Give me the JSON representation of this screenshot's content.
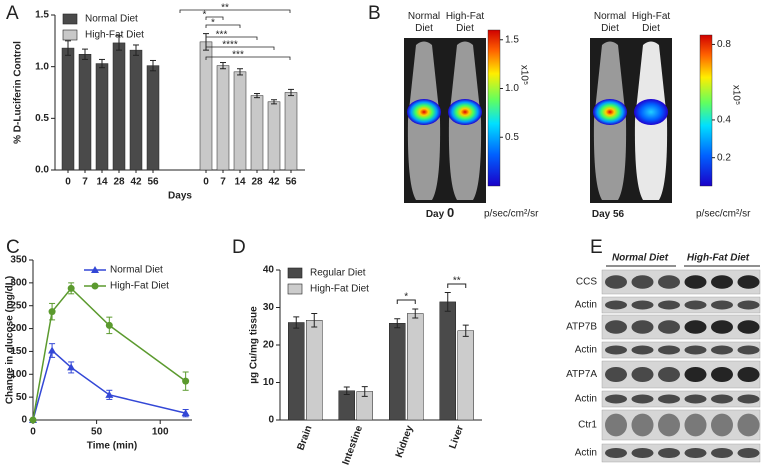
{
  "panel_labels": [
    "A",
    "B",
    "C",
    "D",
    "E"
  ],
  "chart_data": [
    {
      "type": "bar",
      "xlabel": "Days",
      "ylabel": "% D-Luciferin Control",
      "categories": [
        "0",
        "7",
        "14",
        "28",
        "42",
        "56",
        "0",
        "7",
        "14",
        "28",
        "42",
        "56"
      ],
      "series": [
        {
          "name": "Normal Diet",
          "color": "#4a4a4a",
          "values": [
            1.18,
            1.12,
            1.03,
            1.23,
            1.16,
            1.01,
            null,
            null,
            null,
            null,
            null,
            null
          ],
          "errors": [
            0.07,
            0.05,
            0.04,
            0.07,
            0.05,
            0.05,
            null,
            null,
            null,
            null,
            null,
            null
          ]
        },
        {
          "name": "High-Fat Diet",
          "color": "#c8c8c8",
          "values": [
            null,
            null,
            null,
            null,
            null,
            null,
            1.24,
            1.01,
            0.95,
            0.72,
            0.66,
            0.75
          ],
          "errors": [
            null,
            null,
            null,
            null,
            null,
            null,
            0.08,
            0.03,
            0.03,
            0.02,
            0.02,
            0.03
          ]
        }
      ],
      "ylim": [
        0,
        1.5
      ],
      "yticks": [
        {
          "value": 0,
          "label": "0.0"
        },
        0.5,
        {
          "value": 1,
          "label": "1.0"
        },
        1.5
      ],
      "annotations": [
        "*",
        "*",
        "***",
        "****",
        "***",
        "**"
      ],
      "legend": "upper left"
    },
    {
      "type": "line",
      "xlabel": "Time (min)",
      "ylabel": "Change in glucose (mg/dL)",
      "x": [
        0,
        15,
        30,
        60,
        120
      ],
      "series": [
        {
          "name": "Normal Diet",
          "color": "#3347d6",
          "marker": "triangle",
          "values": [
            0,
            152,
            115,
            55,
            15
          ],
          "errors": [
            0,
            15,
            12,
            10,
            8
          ]
        },
        {
          "name": "High-Fat Diet",
          "color": "#5b9a2e",
          "marker": "circle",
          "values": [
            0,
            237,
            288,
            207,
            85
          ],
          "errors": [
            0,
            18,
            12,
            18,
            20
          ]
        }
      ],
      "xlim": [
        0,
        125
      ],
      "xticks": [
        0,
        50,
        100
      ],
      "ylim": [
        0,
        350
      ],
      "yticks": [
        0,
        50,
        100,
        150,
        200,
        250,
        300,
        350
      ],
      "legend": "upper right"
    },
    {
      "type": "grouped_bar",
      "ylabel": "µg Cu/mg tissue",
      "categories": [
        "Brain",
        "Intestine",
        "Kidney",
        "Liver"
      ],
      "series": [
        {
          "name": "Regular Diet",
          "color": "#4a4a4a",
          "values": [
            26,
            7.8,
            25.8,
            31.5
          ],
          "errors": [
            1.5,
            1,
            1.2,
            2.5
          ]
        },
        {
          "name": "High-Fat Diet",
          "color": "#cccccc",
          "values": [
            26.6,
            7.6,
            28.4,
            23.8
          ],
          "errors": [
            1.8,
            1.3,
            1.2,
            1.5
          ]
        }
      ],
      "ylim": [
        0,
        40
      ],
      "yticks": [
        0,
        10,
        20,
        30,
        40
      ],
      "annotations": [
        "*",
        "**"
      ],
      "legend": "upper left"
    }
  ],
  "panel_b": {
    "images": [
      {
        "caption_prefix": "Day",
        "caption_day": "0",
        "columns": [
          "Normal\nDiet",
          "High-Fat\nDiet"
        ],
        "clim": [
          0,
          1.6
        ],
        "cticks": [
          1.5,
          {
            "value": 1,
            "label": "1.0"
          },
          0.5
        ],
        "scale": "x10⁵",
        "unit": "p/sec/cm²/sr"
      },
      {
        "caption_prefix": "Day",
        "caption_day": "56",
        "columns": [
          "Normal\nDiet",
          "High-Fat\nDiet"
        ],
        "clim": [
          0.05,
          0.85
        ],
        "cticks": [
          0.8,
          0.4,
          0.2
        ],
        "scale": "x10⁵",
        "unit": "p/sec/cm²/sr"
      }
    ]
  },
  "panel_e": {
    "groups": [
      "Normal Diet",
      "High-Fat Diet"
    ],
    "rows": [
      "CCS",
      "Actin",
      "ATP7B",
      "Actin",
      "ATP7A",
      "Actin",
      "Ctr1",
      "Actin"
    ]
  }
}
